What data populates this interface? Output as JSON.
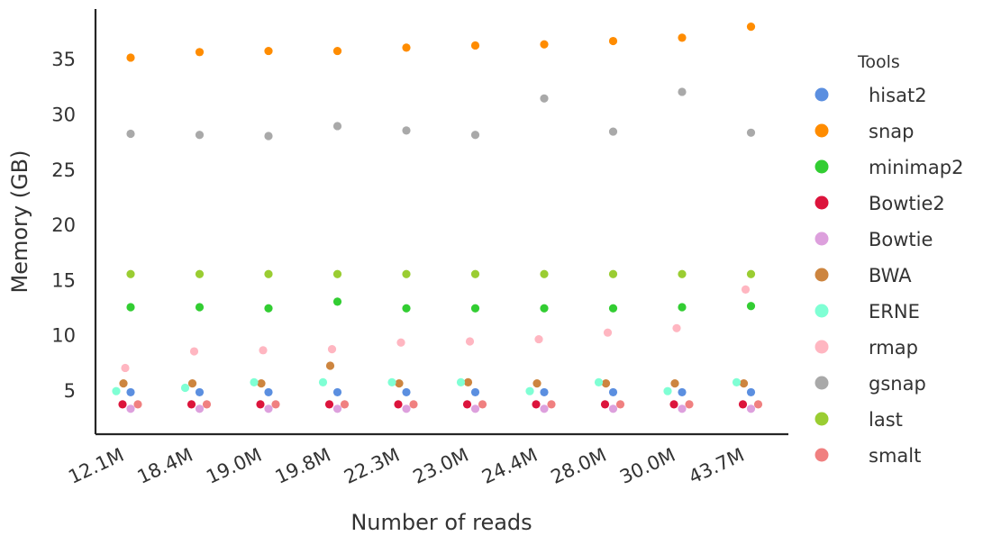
{
  "chart_data": {
    "type": "scatter",
    "xlabel": "Number of reads",
    "ylabel": "Memory (GB)",
    "categories": [
      "12.1M",
      "18.4M",
      "19.0M",
      "19.8M",
      "22.3M",
      "23.0M",
      "24.4M",
      "28.0M",
      "30.0M",
      "43.7M"
    ],
    "yticks": [
      5,
      10,
      15,
      20,
      25,
      30,
      35
    ],
    "ylim": [
      1.0,
      39.5
    ],
    "grid": false,
    "legend": {
      "title": "Tools",
      "placement": "right"
    },
    "series": [
      {
        "name": "hisat2",
        "color": "#5b8fe0",
        "values": [
          4.8,
          4.8,
          4.8,
          4.8,
          4.8,
          4.8,
          4.8,
          4.8,
          4.8,
          4.8
        ]
      },
      {
        "name": "snap",
        "color": "#ff8c00",
        "values": [
          35.1,
          35.6,
          35.7,
          35.7,
          36.0,
          36.2,
          36.3,
          36.6,
          36.9,
          37.9
        ]
      },
      {
        "name": "minimap2",
        "color": "#32cd32",
        "values": [
          12.5,
          12.5,
          12.4,
          13.0,
          12.4,
          12.4,
          12.4,
          12.4,
          12.5,
          12.6
        ]
      },
      {
        "name": "Bowtie2",
        "color": "#dc143c",
        "values": [
          3.7,
          3.7,
          3.7,
          3.7,
          3.7,
          3.7,
          3.7,
          3.7,
          3.7,
          3.7
        ]
      },
      {
        "name": "Bowtie",
        "color": "#dda0dd",
        "values": [
          3.3,
          3.3,
          3.3,
          3.3,
          3.3,
          3.3,
          3.3,
          3.3,
          3.3,
          3.3
        ]
      },
      {
        "name": "BWA",
        "color": "#cd853f",
        "values": [
          5.6,
          5.6,
          5.6,
          7.2,
          5.6,
          5.7,
          5.6,
          5.6,
          5.6,
          5.6
        ]
      },
      {
        "name": "ERNE",
        "color": "#7fffd4",
        "values": [
          4.9,
          5.2,
          5.7,
          5.7,
          5.7,
          5.7,
          4.9,
          5.7,
          4.9,
          5.7
        ]
      },
      {
        "name": "rmap",
        "color": "#ffb6c1",
        "values": [
          7.0,
          8.5,
          8.6,
          8.7,
          9.3,
          9.4,
          9.6,
          10.2,
          10.6,
          14.1
        ]
      },
      {
        "name": "gsnap",
        "color": "#a9a9a9",
        "values": [
          28.2,
          28.1,
          28.0,
          28.9,
          28.5,
          28.1,
          31.4,
          28.4,
          32.0,
          28.3
        ]
      },
      {
        "name": "last",
        "color": "#9acd32",
        "values": [
          15.5,
          15.5,
          15.5,
          15.5,
          15.5,
          15.5,
          15.5,
          15.5,
          15.5,
          15.5
        ]
      },
      {
        "name": "smalt",
        "color": "#f08080",
        "values": [
          3.7,
          3.7,
          3.7,
          3.7,
          3.7,
          3.7,
          3.7,
          3.7,
          3.7,
          3.7
        ]
      }
    ]
  }
}
